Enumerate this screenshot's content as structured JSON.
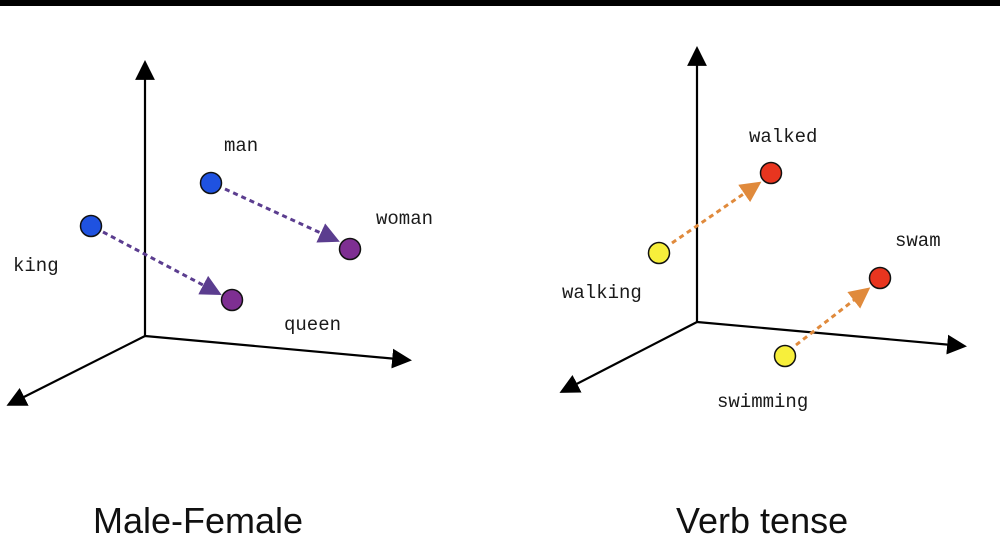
{
  "panels": [
    {
      "id": "male-female",
      "caption": "Male-Female",
      "arrow_color": "#5b3d8f",
      "points": [
        {
          "word": "man",
          "color": "#1f52e0"
        },
        {
          "word": "woman",
          "color": "#7e2f92"
        },
        {
          "word": "king",
          "color": "#1f52e0"
        },
        {
          "word": "queen",
          "color": "#7e2f92"
        }
      ],
      "relations": [
        {
          "from": "man",
          "to": "woman"
        },
        {
          "from": "king",
          "to": "queen"
        }
      ]
    },
    {
      "id": "verb-tense",
      "caption": "Verb tense",
      "arrow_color": "#e08a3c",
      "points": [
        {
          "word": "walked",
          "color": "#e8351f"
        },
        {
          "word": "walking",
          "color": "#f7ef3b"
        },
        {
          "word": "swam",
          "color": "#e8351f"
        },
        {
          "word": "swimming",
          "color": "#f7ef3b"
        }
      ],
      "relations": [
        {
          "from": "walking",
          "to": "walked"
        },
        {
          "from": "swimming",
          "to": "swam"
        }
      ]
    }
  ]
}
